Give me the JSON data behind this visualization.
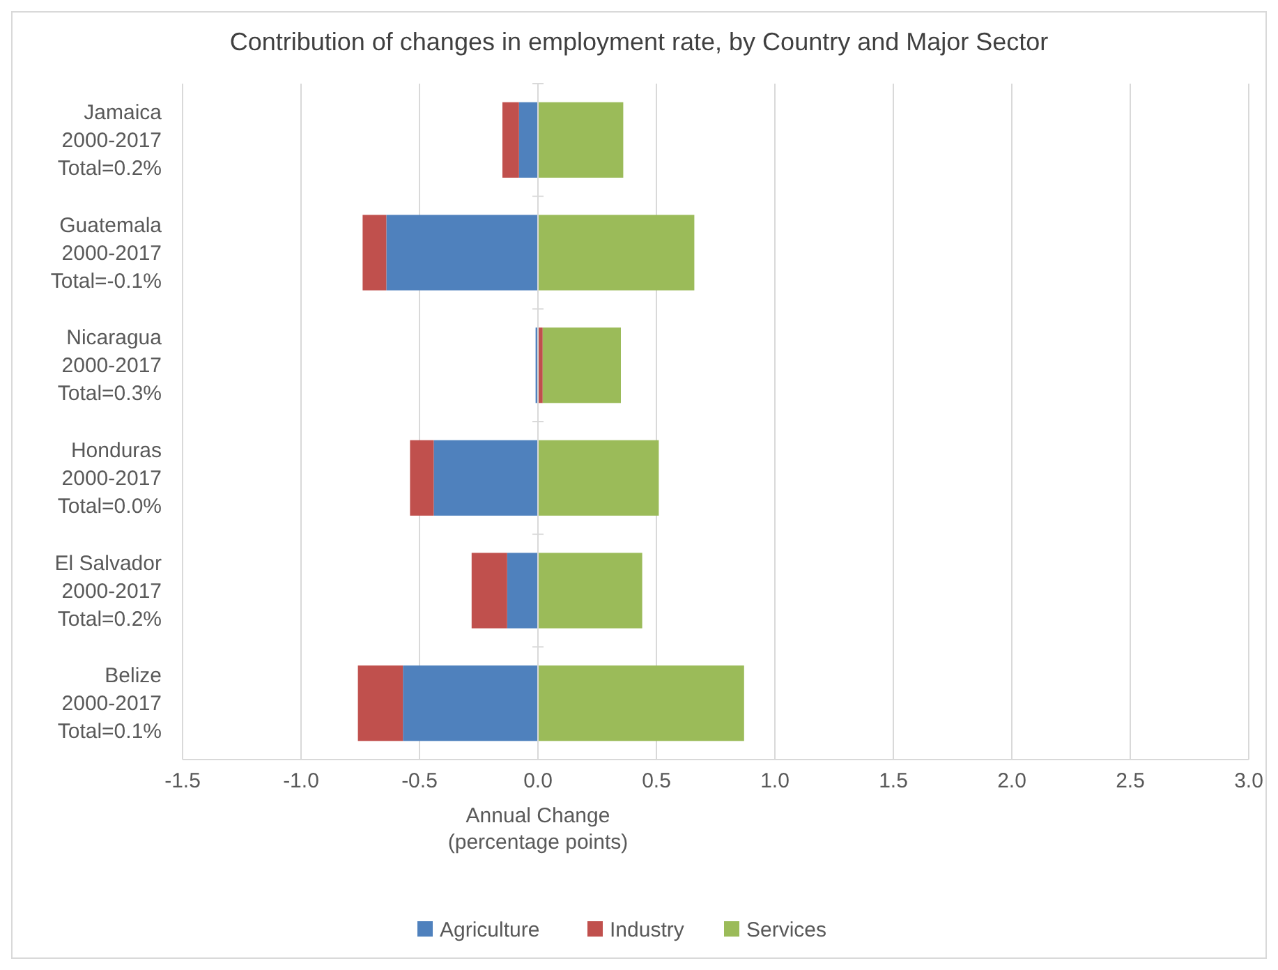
{
  "chart_data": {
    "type": "bar",
    "orientation": "horizontal",
    "stacked": true,
    "title": "Contribution of changes in employment rate, by Country and Major Sector",
    "xlabel": "Annual Change\n(percentage points)",
    "categories": [
      "Jamaica\n2000-2017\nTotal=0.2%",
      "Guatemala\n2000-2017\nTotal=-0.1%",
      "Nicaragua\n2000-2017\nTotal=0.3%",
      "Honduras\n2000-2017\nTotal=0.0%",
      "El Salvador\n2000-2017\nTotal=0.2%",
      "Belize\n2000-2017\nTotal=0.1%"
    ],
    "series": [
      {
        "name": "Agriculture",
        "color": "#4f81bd",
        "values": [
          -0.08,
          -0.64,
          -0.01,
          -0.44,
          -0.13,
          -0.57
        ]
      },
      {
        "name": "Industry",
        "color": "#c0504d",
        "values": [
          -0.07,
          -0.1,
          0.02,
          -0.1,
          -0.15,
          -0.19
        ]
      },
      {
        "name": "Services",
        "color": "#9bbb59",
        "values": [
          0.36,
          0.66,
          0.33,
          0.51,
          0.44,
          0.87
        ]
      }
    ],
    "xlim": [
      -1.5,
      3
    ],
    "xticks": [
      {
        "value": -1.5,
        "label": "-1.5"
      },
      {
        "value": -1,
        "label": "-1.0"
      },
      {
        "value": -0.5,
        "label": "-0.5"
      },
      {
        "value": 0,
        "label": "0.0"
      },
      {
        "value": 0.5,
        "label": "0.5"
      },
      {
        "value": 1,
        "label": "1.0"
      },
      {
        "value": 1.5,
        "label": "1.5"
      },
      {
        "value": 2,
        "label": "2.0"
      },
      {
        "value": 2.5,
        "label": "2.5"
      },
      {
        "value": 3,
        "label": "3.0"
      }
    ],
    "grid": "x",
    "legend": "bottom"
  }
}
